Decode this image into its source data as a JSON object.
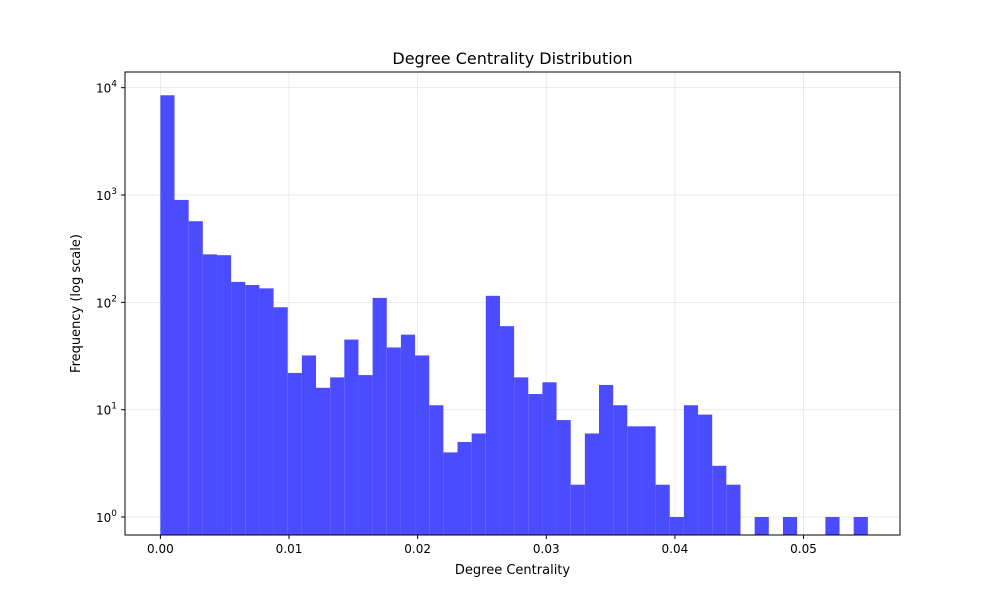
{
  "chart_data": {
    "type": "bar",
    "title": "Degree Centrality Distribution",
    "xlabel": "Degree Centrality",
    "ylabel": "Frequency (log scale)",
    "yscale": "log",
    "grid": true,
    "bar_color": "#4B4BFF",
    "bin_width": 0.0011,
    "xlim": [
      -0.00275,
      0.0575
    ],
    "ylim": [
      0.68,
      14000
    ],
    "x_ticks": [
      {
        "value": 0.0,
        "label": "0.00"
      },
      {
        "value": 0.01,
        "label": "0.01"
      },
      {
        "value": 0.02,
        "label": "0.02"
      },
      {
        "value": 0.03,
        "label": "0.03"
      },
      {
        "value": 0.04,
        "label": "0.04"
      },
      {
        "value": 0.05,
        "label": "0.05"
      }
    ],
    "y_ticks": [
      {
        "value": 1,
        "base": "10",
        "exp": "0"
      },
      {
        "value": 10,
        "base": "10",
        "exp": "1"
      },
      {
        "value": 100,
        "base": "10",
        "exp": "2"
      },
      {
        "value": 1000,
        "base": "10",
        "exp": "3"
      },
      {
        "value": 10000,
        "base": "10",
        "exp": "4"
      }
    ],
    "bin_starts": [
      0.0,
      0.0011,
      0.0022,
      0.0033,
      0.0044,
      0.0055,
      0.0066,
      0.0077,
      0.0088,
      0.0099,
      0.011,
      0.0121,
      0.0132,
      0.0143,
      0.0154,
      0.0165,
      0.0176,
      0.0187,
      0.0198,
      0.0209,
      0.022,
      0.0231,
      0.0242,
      0.0253,
      0.0264,
      0.0275,
      0.0286,
      0.0297,
      0.0308,
      0.0319,
      0.033,
      0.0341,
      0.0352,
      0.0363,
      0.0374,
      0.0385,
      0.0396,
      0.0407,
      0.0418,
      0.0429,
      0.044,
      0.0451,
      0.0462,
      0.0473,
      0.0484,
      0.0495,
      0.0506,
      0.0517,
      0.0528,
      0.0539
    ],
    "values": [
      8500,
      900,
      570,
      280,
      275,
      155,
      145,
      135,
      90,
      22,
      32,
      16,
      20,
      45,
      21,
      110,
      38,
      50,
      32,
      11,
      4,
      5,
      6,
      115,
      60,
      20,
      14,
      18,
      8,
      2,
      6,
      17,
      11,
      7,
      7,
      2,
      1,
      11,
      9,
      3,
      2,
      0,
      1,
      0,
      1,
      0,
      0,
      1,
      0,
      1
    ]
  }
}
